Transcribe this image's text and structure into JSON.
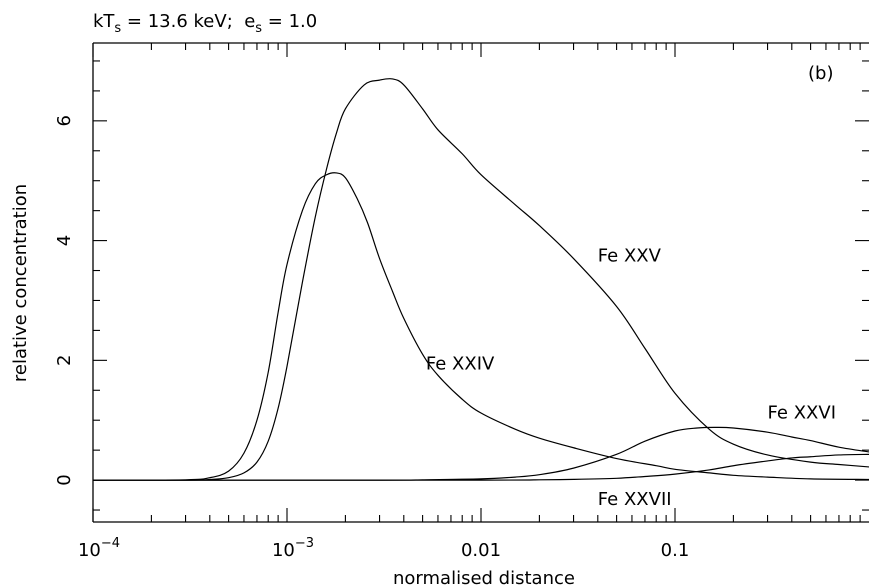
{
  "chart_data": {
    "type": "line",
    "title": "kT_s = 13.6 keV;  e_s = 1.0",
    "title_parts": {
      "kt_prefix": "kT",
      "kt_sub": "s",
      "kt_value": " = 13.6 keV;  ",
      "es_prefix": "e",
      "es_sub": "s",
      "es_value": " = 1.0"
    },
    "panel_label": "(b)",
    "xlabel": "normalised distance",
    "ylabel": "relative concentration",
    "x_scale": "log",
    "xlim": [
      0.0001,
      1.0
    ],
    "ylim": [
      -0.7,
      7.3
    ],
    "grid": false,
    "x_ticks": [
      {
        "value": 0.0001,
        "base": "10",
        "exp": "−4"
      },
      {
        "value": 0.001,
        "base": "10",
        "exp": "−3"
      },
      {
        "value": 0.01,
        "label": "0.01"
      },
      {
        "value": 0.1,
        "label": "0.1"
      }
    ],
    "y_ticks": [
      {
        "value": 0,
        "label": "0"
      },
      {
        "value": 2,
        "label": "2"
      },
      {
        "value": 4,
        "label": "4"
      },
      {
        "value": 6,
        "label": "6"
      }
    ],
    "series": [
      {
        "name": "Fe XXIV",
        "label_x": 0.0052,
        "label_y": 1.85,
        "points": [
          [
            0.0001,
            0
          ],
          [
            0.0003,
            0.005
          ],
          [
            0.0004,
            0.04
          ],
          [
            0.0005,
            0.15
          ],
          [
            0.0006,
            0.45
          ],
          [
            0.0007,
            1.0
          ],
          [
            0.0008,
            1.8
          ],
          [
            0.0009,
            2.8
          ],
          [
            0.001,
            3.6
          ],
          [
            0.0012,
            4.5
          ],
          [
            0.0014,
            4.95
          ],
          [
            0.0016,
            5.1
          ],
          [
            0.0018,
            5.13
          ],
          [
            0.002,
            5.05
          ],
          [
            0.0023,
            4.7
          ],
          [
            0.0026,
            4.3
          ],
          [
            0.003,
            3.7
          ],
          [
            0.0035,
            3.15
          ],
          [
            0.004,
            2.7
          ],
          [
            0.005,
            2.1
          ],
          [
            0.006,
            1.75
          ],
          [
            0.008,
            1.35
          ],
          [
            0.01,
            1.12
          ],
          [
            0.015,
            0.85
          ],
          [
            0.02,
            0.7
          ],
          [
            0.03,
            0.54
          ],
          [
            0.05,
            0.36
          ],
          [
            0.08,
            0.24
          ],
          [
            0.1,
            0.18
          ],
          [
            0.15,
            0.12
          ],
          [
            0.2,
            0.08
          ],
          [
            0.3,
            0.05
          ],
          [
            0.5,
            0.02
          ],
          [
            1.0,
            0.01
          ]
        ]
      },
      {
        "name": "Fe XXV",
        "label_x": 0.04,
        "label_y": 3.65,
        "points": [
          [
            0.0001,
            0
          ],
          [
            0.0003,
            0.0
          ],
          [
            0.0004,
            0.01
          ],
          [
            0.0005,
            0.04
          ],
          [
            0.0006,
            0.12
          ],
          [
            0.0007,
            0.3
          ],
          [
            0.0008,
            0.65
          ],
          [
            0.0009,
            1.2
          ],
          [
            0.001,
            1.9
          ],
          [
            0.0012,
            3.3
          ],
          [
            0.0014,
            4.4
          ],
          [
            0.0016,
            5.2
          ],
          [
            0.0018,
            5.8
          ],
          [
            0.002,
            6.2
          ],
          [
            0.0025,
            6.6
          ],
          [
            0.003,
            6.68
          ],
          [
            0.0035,
            6.7
          ],
          [
            0.004,
            6.6
          ],
          [
            0.005,
            6.2
          ],
          [
            0.006,
            5.85
          ],
          [
            0.008,
            5.45
          ],
          [
            0.01,
            5.1
          ],
          [
            0.015,
            4.6
          ],
          [
            0.02,
            4.25
          ],
          [
            0.03,
            3.7
          ],
          [
            0.05,
            2.9
          ],
          [
            0.07,
            2.2
          ],
          [
            0.1,
            1.45
          ],
          [
            0.15,
            0.85
          ],
          [
            0.2,
            0.6
          ],
          [
            0.3,
            0.42
          ],
          [
            0.5,
            0.3
          ],
          [
            0.7,
            0.26
          ],
          [
            1.0,
            0.22
          ]
        ]
      },
      {
        "name": "Fe XXVI",
        "label_x": 0.3,
        "label_y": 1.03,
        "points": [
          [
            0.0001,
            0
          ],
          [
            0.003,
            0.0
          ],
          [
            0.005,
            0.005
          ],
          [
            0.01,
            0.02
          ],
          [
            0.015,
            0.05
          ],
          [
            0.02,
            0.09
          ],
          [
            0.03,
            0.2
          ],
          [
            0.05,
            0.43
          ],
          [
            0.07,
            0.65
          ],
          [
            0.1,
            0.82
          ],
          [
            0.13,
            0.87
          ],
          [
            0.16,
            0.88
          ],
          [
            0.2,
            0.87
          ],
          [
            0.3,
            0.8
          ],
          [
            0.4,
            0.72
          ],
          [
            0.5,
            0.66
          ],
          [
            0.7,
            0.55
          ],
          [
            1.0,
            0.47
          ]
        ]
      },
      {
        "name": "Fe XXVII",
        "label_x": 0.04,
        "label_y": -0.42,
        "points": [
          [
            0.0001,
            0
          ],
          [
            0.01,
            0.0
          ],
          [
            0.02,
            0.005
          ],
          [
            0.03,
            0.012
          ],
          [
            0.05,
            0.03
          ],
          [
            0.07,
            0.06
          ],
          [
            0.1,
            0.1
          ],
          [
            0.15,
            0.17
          ],
          [
            0.2,
            0.24
          ],
          [
            0.3,
            0.32
          ],
          [
            0.4,
            0.37
          ],
          [
            0.5,
            0.39
          ],
          [
            0.7,
            0.42
          ],
          [
            1.0,
            0.43
          ]
        ]
      }
    ]
  }
}
